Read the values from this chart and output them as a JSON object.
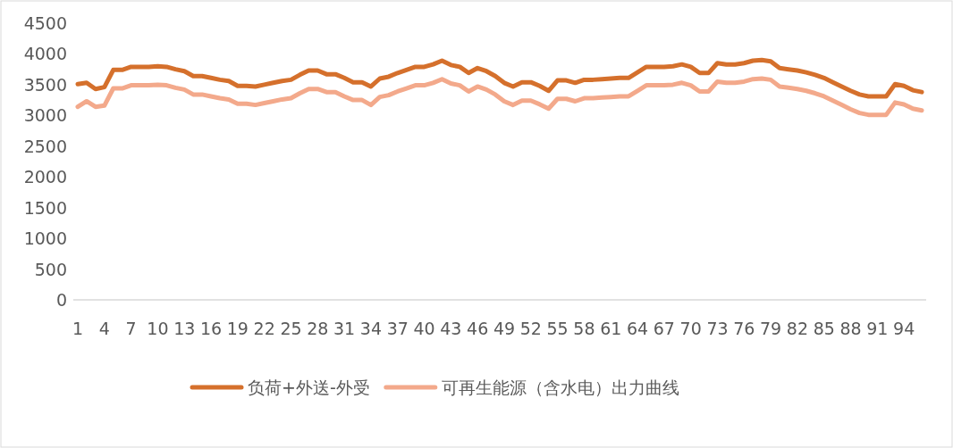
{
  "chart_data": {
    "type": "line",
    "categories": [
      "1",
      null,
      null,
      "4",
      null,
      null,
      "7",
      null,
      null,
      "10",
      null,
      null,
      "13",
      null,
      null,
      "16",
      null,
      null,
      "19",
      null,
      null,
      "22",
      null,
      null,
      "25",
      null,
      null,
      "28",
      null,
      null,
      "31",
      null,
      null,
      "34",
      null,
      null,
      "37",
      null,
      null,
      "40",
      null,
      null,
      "43",
      null,
      null,
      "46",
      null,
      null,
      "49",
      null,
      null,
      "52",
      null,
      null,
      "55",
      null,
      null,
      "58",
      null,
      null,
      "61",
      null,
      null,
      "64",
      null,
      null,
      "67",
      null,
      null,
      "70",
      null,
      null,
      "73",
      null,
      null,
      "76",
      null,
      null,
      "79",
      null,
      null,
      "82",
      null,
      null,
      "85",
      null,
      null,
      "88",
      null,
      null,
      "91",
      null,
      null,
      "94",
      null,
      null
    ],
    "ylim": [
      0,
      4500
    ],
    "yticks": [
      0,
      500,
      1000,
      1500,
      2000,
      2500,
      3000,
      3500,
      4000,
      4500
    ],
    "grid": false,
    "legend": "bottom",
    "line_style": "solid",
    "marker": "none",
    "series": [
      {
        "name": "负荷+外送-外受",
        "color": "#d5702c",
        "values": [
          3510,
          3530,
          3430,
          3460,
          3740,
          3740,
          3790,
          3790,
          3790,
          3800,
          3790,
          3750,
          3720,
          3640,
          3640,
          3610,
          3580,
          3560,
          3480,
          3480,
          3470,
          3500,
          3530,
          3560,
          3580,
          3660,
          3730,
          3730,
          3670,
          3670,
          3610,
          3540,
          3540,
          3470,
          3600,
          3630,
          3690,
          3740,
          3790,
          3790,
          3830,
          3890,
          3820,
          3790,
          3690,
          3770,
          3720,
          3640,
          3530,
          3470,
          3540,
          3540,
          3480,
          3400,
          3570,
          3570,
          3530,
          3580,
          3580,
          3590,
          3600,
          3610,
          3610,
          3700,
          3790,
          3790,
          3790,
          3800,
          3830,
          3790,
          3690,
          3690,
          3850,
          3830,
          3830,
          3850,
          3890,
          3900,
          3880,
          3770,
          3750,
          3730,
          3700,
          3660,
          3610,
          3540,
          3470,
          3400,
          3340,
          3310,
          3310,
          3310,
          3510,
          3480,
          3410,
          3380
        ]
      },
      {
        "name": "可再生能源（含水电）出力曲线",
        "color": "#f3a98b",
        "values": [
          3140,
          3230,
          3140,
          3160,
          3440,
          3440,
          3490,
          3490,
          3490,
          3500,
          3490,
          3450,
          3420,
          3340,
          3340,
          3310,
          3280,
          3260,
          3190,
          3190,
          3170,
          3200,
          3230,
          3260,
          3280,
          3360,
          3430,
          3430,
          3380,
          3380,
          3310,
          3250,
          3250,
          3170,
          3300,
          3330,
          3390,
          3440,
          3490,
          3490,
          3530,
          3590,
          3520,
          3490,
          3390,
          3470,
          3420,
          3340,
          3230,
          3170,
          3240,
          3240,
          3180,
          3110,
          3270,
          3270,
          3230,
          3280,
          3280,
          3290,
          3300,
          3310,
          3310,
          3400,
          3490,
          3490,
          3490,
          3500,
          3530,
          3490,
          3390,
          3390,
          3550,
          3530,
          3530,
          3550,
          3590,
          3600,
          3580,
          3470,
          3450,
          3430,
          3400,
          3360,
          3310,
          3240,
          3170,
          3100,
          3040,
          3010,
          3010,
          3010,
          3210,
          3180,
          3110,
          3080
        ]
      }
    ]
  }
}
